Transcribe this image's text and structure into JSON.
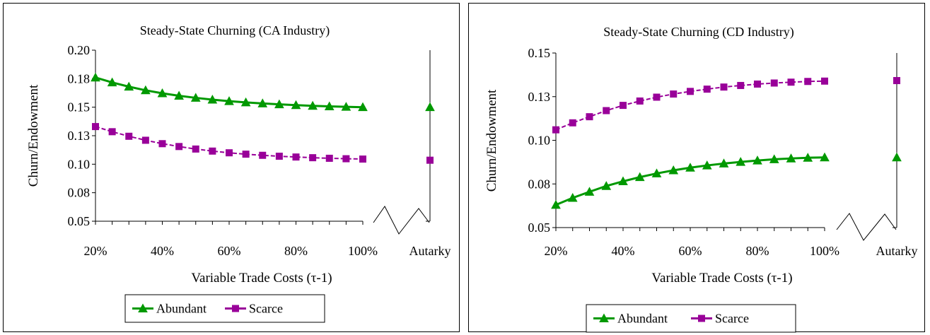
{
  "colors": {
    "abundant": "#009900",
    "scarce": "#990099",
    "frame": "#000000"
  },
  "chart_data": [
    {
      "type": "line",
      "title": "Steady-State Churning (CA Industry)",
      "xlabel": "Variable Trade Costs (τ-1)",
      "ylabel": "Churn/Endowment",
      "x": [
        20,
        25,
        30,
        35,
        40,
        45,
        50,
        55,
        60,
        65,
        70,
        75,
        80,
        85,
        90,
        95,
        100
      ],
      "x_tick_labels": [
        "20%",
        "40%",
        "60%",
        "80%",
        "100%"
      ],
      "x_tick_values": [
        20,
        40,
        60,
        80,
        100
      ],
      "extra_category": "Autarky",
      "y_tick_labels": [
        "0.05",
        "0.08",
        "0.10",
        "0.13",
        "0.15",
        "0.18",
        "0.20"
      ],
      "ylim": [
        0.05,
        0.2
      ],
      "series": [
        {
          "name": "Abundant",
          "color_key": "abundant",
          "marker": "triangle",
          "values": [
            0.176,
            0.1717,
            0.168,
            0.1648,
            0.1622,
            0.16,
            0.1582,
            0.1566,
            0.1553,
            0.1542,
            0.1533,
            0.1525,
            0.1518,
            0.1512,
            0.1507,
            0.1503,
            0.15
          ],
          "autarky": 0.15
        },
        {
          "name": "Scarce",
          "color_key": "scarce",
          "marker": "square",
          "values": [
            0.133,
            0.1285,
            0.1245,
            0.121,
            0.118,
            0.1155,
            0.1133,
            0.1115,
            0.11,
            0.1088,
            0.1078,
            0.107,
            0.1063,
            0.1057,
            0.1052,
            0.1048,
            0.1045
          ],
          "autarky": 0.1035
        }
      ]
    },
    {
      "type": "line",
      "title": "Steady-State Churning (CD Industry)",
      "xlabel": "Variable Trade Costs (τ-1)",
      "ylabel": "Churn/Endowment",
      "x": [
        20,
        25,
        30,
        35,
        40,
        45,
        50,
        55,
        60,
        65,
        70,
        75,
        80,
        85,
        90,
        95,
        100
      ],
      "x_tick_labels": [
        "20%",
        "40%",
        "60%",
        "80%",
        "100%"
      ],
      "x_tick_values": [
        20,
        40,
        60,
        80,
        100
      ],
      "extra_category": "Autarky",
      "y_tick_labels": [
        "0.05",
        "0.08",
        "0.10",
        "0.13",
        "0.15"
      ],
      "ylim": [
        0.05,
        0.15
      ],
      "series": [
        {
          "name": "Abundant",
          "color_key": "abundant",
          "marker": "triangle",
          "values": [
            0.063,
            0.067,
            0.0705,
            0.0738,
            0.0765,
            0.0789,
            0.081,
            0.0828,
            0.0843,
            0.0856,
            0.0867,
            0.0876,
            0.0884,
            0.0891,
            0.0896,
            0.09,
            0.0902
          ],
          "autarky": 0.0902
        },
        {
          "name": "Scarce",
          "color_key": "scarce",
          "marker": "square",
          "values": [
            0.106,
            0.11,
            0.1135,
            0.117,
            0.12,
            0.1225,
            0.1247,
            0.1265,
            0.128,
            0.1293,
            0.1305,
            0.1314,
            0.1322,
            0.1328,
            0.1333,
            0.1337,
            0.1339
          ],
          "autarky": 0.1342
        }
      ]
    }
  ]
}
